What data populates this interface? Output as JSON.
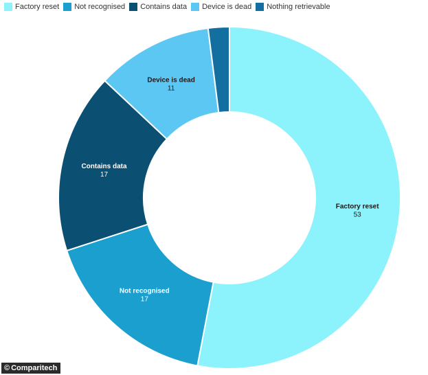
{
  "chart_data": {
    "type": "pie",
    "variant": "donut",
    "title": "",
    "legend_position": "top-left",
    "categories": [
      "Factory reset",
      "Not recognised",
      "Contains data",
      "Device is dead",
      "Nothing retrievable"
    ],
    "values": [
      53,
      17,
      17,
      11,
      2
    ],
    "colors": [
      "#8cf2fc",
      "#1a9fce",
      "#0b4f72",
      "#5dc7f3",
      "#126f9f"
    ],
    "label_colors": [
      "#1a1a1a",
      "#ffffff",
      "#ffffff",
      "#1a1a1a",
      "#ffffff"
    ],
    "slice_labels_shown": [
      true,
      true,
      true,
      true,
      false
    ]
  },
  "credit": {
    "symbol": "©",
    "text": "Comparitech"
  }
}
